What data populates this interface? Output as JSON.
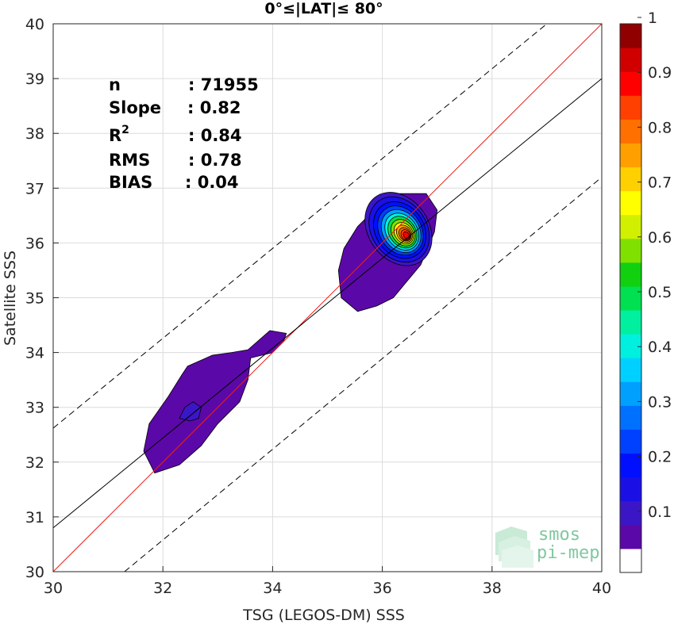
{
  "chart_data": {
    "type": "scatter",
    "subtype": "density contour",
    "title": "0°≤|LAT|≤ 80°",
    "xlabel": "TSG (LEGOS-DM) SSS",
    "ylabel": "Satellite SSS",
    "xlim": [
      30,
      40
    ],
    "ylim": [
      30,
      40
    ],
    "xticks": [
      30,
      32,
      34,
      36,
      38,
      40
    ],
    "yticks": [
      30,
      31,
      32,
      33,
      34,
      35,
      36,
      37,
      38,
      39,
      40
    ],
    "grid": true,
    "stats": [
      {
        "label": "n",
        "value": ": 71955"
      },
      {
        "label": "Slope",
        "value": ": 0.82"
      },
      {
        "label": "R",
        "sup": "2",
        "value": ": 0.84"
      },
      {
        "label": "RMS",
        "value": ": 0.78"
      },
      {
        "label": "BIAS",
        "value": ": 0.04"
      }
    ],
    "reference_lines": [
      {
        "name": "1:1",
        "color": "#e8201e",
        "style": "solid",
        "points": [
          [
            30,
            30
          ],
          [
            40,
            40
          ]
        ]
      },
      {
        "name": "fit",
        "color": "#000000",
        "style": "solid",
        "points": [
          [
            30,
            30.8
          ],
          [
            40,
            39
          ]
        ]
      },
      {
        "name": "upper",
        "color": "#000000",
        "style": "dashed",
        "points": [
          [
            30,
            32.62
          ],
          [
            39,
            40
          ]
        ]
      },
      {
        "name": "lower",
        "color": "#000000",
        "style": "dashed",
        "points": [
          [
            31.3,
            30
          ],
          [
            40,
            37.2
          ]
        ]
      }
    ],
    "density_center": {
      "x": 36.4,
      "y": 36.25
    },
    "contour_levels": [
      0.05,
      0.1,
      0.15,
      0.2,
      0.25,
      0.3,
      0.35,
      0.4,
      0.45,
      0.5,
      0.55,
      0.6,
      0.65,
      0.7,
      0.75,
      0.8,
      0.85,
      0.9,
      0.95,
      1
    ],
    "colorbar": {
      "ticks": [
        "0.1",
        "0.2",
        "0.3",
        "0.4",
        "0.5",
        "0.6",
        "0.7",
        "0.8",
        "0.9",
        "1"
      ],
      "range": [
        0,
        1
      ],
      "colors": [
        "#ffffff",
        "#5b08a8",
        "#3b16c6",
        "#1a10e6",
        "#0010ff",
        "#0040ff",
        "#0070ff",
        "#00a0ff",
        "#00d0ff",
        "#00f0e0",
        "#00f0a0",
        "#00e050",
        "#10d010",
        "#80e000",
        "#d0f000",
        "#ffff00",
        "#ffd000",
        "#ffa000",
        "#ff7000",
        "#ff4000",
        "#ff0000",
        "#d00000",
        "#900000"
      ]
    }
  },
  "logo": {
    "line1": "smos",
    "line2": "pi-mep"
  }
}
